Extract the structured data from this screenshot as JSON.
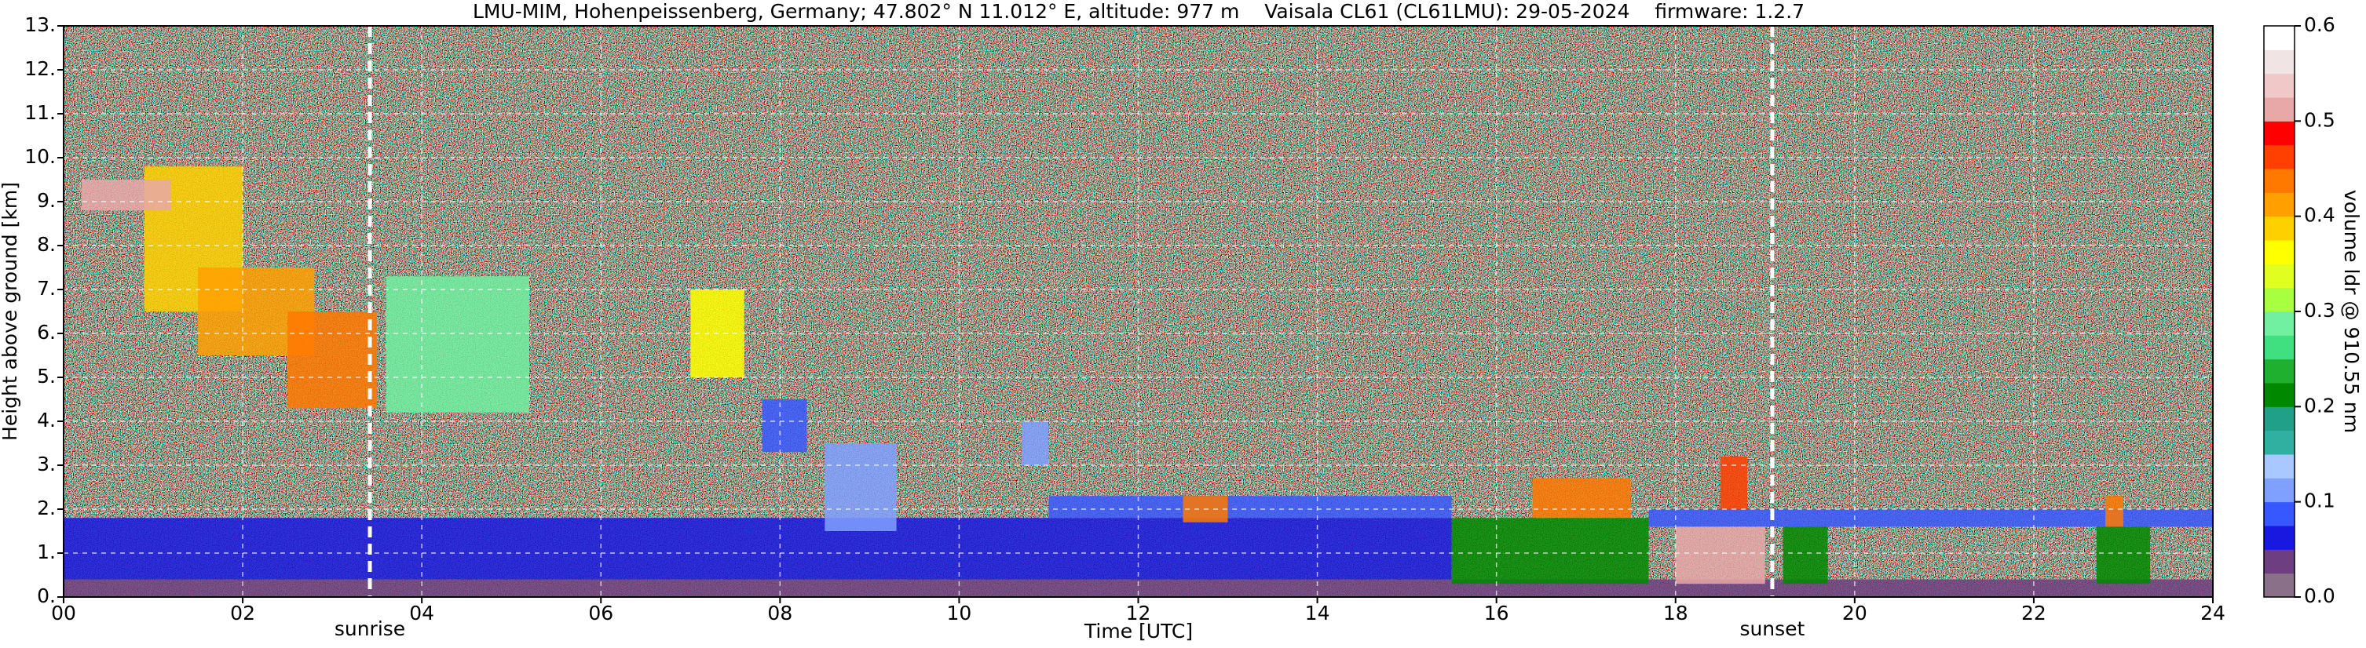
{
  "chart_data": {
    "type": "heatmap",
    "title": "LMU-MIM, Hohenpeissenberg, Germany; 47.802° N 11.012° E, altitude: 977 m    Vaisala CL61 (CL61LMU): 29-05-2024    firmware: 1.2.7",
    "xlabel": "Time [UTC]",
    "ylabel": "Height above ground [km]",
    "xlim": [
      0,
      24
    ],
    "ylim": [
      0,
      13
    ],
    "xticks": [
      {
        "value": 0,
        "label": "00"
      },
      {
        "value": 2,
        "label": "02"
      },
      {
        "value": 4,
        "label": "04"
      },
      {
        "value": 6,
        "label": "06"
      },
      {
        "value": 8,
        "label": "08"
      },
      10,
      12,
      14,
      16,
      18,
      20,
      22,
      24
    ],
    "yticks": [
      {
        "value": 0,
        "label": "0."
      },
      {
        "value": 1,
        "label": "1."
      },
      {
        "value": 2,
        "label": "2."
      },
      {
        "value": 3,
        "label": "3."
      },
      {
        "value": 4,
        "label": "4."
      },
      {
        "value": 5,
        "label": "5."
      },
      {
        "value": 6,
        "label": "6."
      },
      {
        "value": 7,
        "label": "7."
      },
      {
        "value": 8,
        "label": "8."
      },
      {
        "value": 9,
        "label": "9."
      },
      {
        "value": 10,
        "label": "10."
      },
      {
        "value": 11,
        "label": "11."
      },
      {
        "value": 12,
        "label": "12."
      },
      {
        "value": 13,
        "label": "13."
      }
    ],
    "grid": true,
    "vlines": [
      {
        "x": 3.42,
        "label": "sunrise"
      },
      {
        "x": 19.08,
        "label": "sunset"
      }
    ],
    "colorbar": {
      "label": "volume ldr @ 910.55 nm",
      "clim": [
        0,
        0.6
      ],
      "cticks": [
        {
          "value": 0,
          "label": "0.0"
        },
        0.1,
        0.2,
        0.3,
        0.4,
        0.5,
        0.6
      ],
      "colors": [
        "#8a7088",
        "#6e3f80",
        "#1818e0",
        "#3858ff",
        "#80a0ff",
        "#a8c8ff",
        "#30b0a0",
        "#20a088",
        "#008800",
        "#20b030",
        "#40e080",
        "#70f0a0",
        "#a8ff40",
        "#e0ff20",
        "#ffff00",
        "#ffd000",
        "#ffa000",
        "#ff7800",
        "#ff4000",
        "#ff0000",
        "#e8a8a8",
        "#f0c8c8",
        "#f0e4e4",
        "#ffffff"
      ]
    },
    "regions": [
      {
        "x0": 0,
        "x1": 24,
        "y0": 0,
        "y1": 0.4,
        "value": 0.04
      },
      {
        "x0": 0,
        "x1": 15.5,
        "y0": 0.4,
        "y1": 1.8,
        "value": 0.07
      },
      {
        "x0": 0.9,
        "x1": 2.0,
        "y0": 6.5,
        "y1": 9.8,
        "value": 0.38
      },
      {
        "x0": 1.5,
        "x1": 2.8,
        "y0": 5.5,
        "y1": 7.5,
        "value": 0.42
      },
      {
        "x0": 2.5,
        "x1": 3.5,
        "y0": 4.3,
        "y1": 6.5,
        "value": 0.43
      },
      {
        "x0": 0.2,
        "x1": 1.2,
        "y0": 8.8,
        "y1": 9.5,
        "value": 0.5
      },
      {
        "x0": 3.6,
        "x1": 5.2,
        "y0": 4.2,
        "y1": 7.3,
        "value": 0.28
      },
      {
        "x0": 7.0,
        "x1": 7.6,
        "y0": 5.0,
        "y1": 7.0,
        "value": 0.35
      },
      {
        "x0": 7.8,
        "x1": 8.3,
        "y0": 3.3,
        "y1": 4.5,
        "value": 0.08
      },
      {
        "x0": 8.5,
        "x1": 9.3,
        "y0": 1.5,
        "y1": 3.5,
        "value": 0.1
      },
      {
        "x0": 10.7,
        "x1": 11.0,
        "y0": 3.0,
        "y1": 4.0,
        "value": 0.1
      },
      {
        "x0": 11.0,
        "x1": 15.5,
        "y0": 1.8,
        "y1": 2.3,
        "value": 0.09
      },
      {
        "x0": 12.5,
        "x1": 13.0,
        "y0": 1.7,
        "y1": 2.3,
        "value": 0.44
      },
      {
        "x0": 15.5,
        "x1": 17.7,
        "y0": 0.3,
        "y1": 1.8,
        "value": 0.22
      },
      {
        "x0": 16.4,
        "x1": 17.5,
        "y0": 1.8,
        "y1": 2.7,
        "value": 0.44
      },
      {
        "x0": 17.7,
        "x1": 24,
        "y0": 1.6,
        "y1": 2.0,
        "value": 0.08
      },
      {
        "x0": 18.0,
        "x1": 19.0,
        "y0": 0.3,
        "y1": 1.6,
        "value": 0.52
      },
      {
        "x0": 18.5,
        "x1": 18.8,
        "y0": 2.0,
        "y1": 3.2,
        "value": 0.45
      },
      {
        "x0": 19.2,
        "x1": 19.7,
        "y0": 0.3,
        "y1": 1.6,
        "value": 0.2
      },
      {
        "x0": 22.8,
        "x1": 23.0,
        "y0": 1.6,
        "y1": 2.3,
        "value": 0.44
      },
      {
        "x0": 22.7,
        "x1": 23.3,
        "y0": 0.3,
        "y1": 1.6,
        "value": 0.2
      }
    ]
  }
}
